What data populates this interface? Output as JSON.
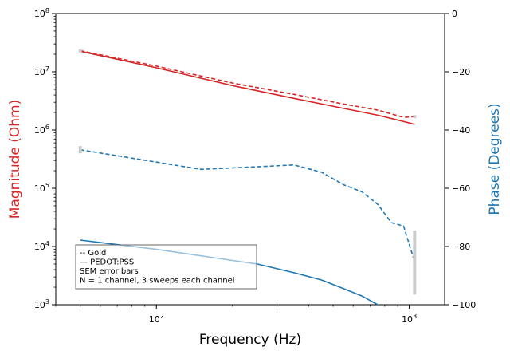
{
  "chart_data": {
    "type": "line",
    "xlabel": "Frequency (Hz)",
    "ylabel_left": "Magnitude (Ohm)",
    "ylabel_right": "Phase (Degrees)",
    "x_scale": "log",
    "xlim": [
      40,
      1380
    ],
    "ylim_left": [
      1000,
      100000000
    ],
    "ylim_right": [
      -100,
      0
    ],
    "x_ticks": [
      {
        "value": 100,
        "base": "10",
        "exp": "2"
      },
      {
        "value": 1000,
        "base": "10",
        "exp": "3"
      }
    ],
    "left_ticks": [
      {
        "value": 1000,
        "base": "10",
        "exp": "3"
      },
      {
        "value": 10000,
        "base": "10",
        "exp": "4"
      },
      {
        "value": 100000,
        "base": "10",
        "exp": "5"
      },
      {
        "value": 1000000,
        "base": "10",
        "exp": "6"
      },
      {
        "value": 10000000,
        "base": "10",
        "exp": "7"
      },
      {
        "value": 100000000,
        "base": "10",
        "exp": "8"
      }
    ],
    "right_ticks": [
      0,
      -20,
      -40,
      -60,
      -80,
      -100
    ],
    "right_tick_labels": [
      "0",
      "−20",
      "−40",
      "−60",
      "−80",
      "−100"
    ],
    "colors": {
      "magnitude": "#d62728",
      "phase": "#1f77b4",
      "errorbar": "#cccccc"
    },
    "series": [
      {
        "name": "Gold magnitude",
        "axis": "left",
        "style": "dashed",
        "color_key": "magnitude",
        "x": [
          50,
          100,
          200,
          350,
          550,
          750,
          950,
          1050
        ],
        "y": [
          23000000,
          12500000,
          6400000,
          4100000,
          2800000,
          2200000,
          1650000,
          1700000
        ]
      },
      {
        "name": "PEDOT:PSS magnitude",
        "axis": "left",
        "style": "solid",
        "color_key": "magnitude",
        "x": [
          50,
          100,
          200,
          350,
          550,
          750,
          950,
          1050
        ],
        "y": [
          22500000,
          11700000,
          5800000,
          3500000,
          2350000,
          1800000,
          1400000,
          1250000
        ]
      },
      {
        "name": "Gold phase",
        "axis": "right",
        "style": "dashed",
        "color_key": "phase",
        "x": [
          50,
          100,
          150,
          200,
          350,
          450,
          550,
          650,
          750,
          850,
          950,
          1050
        ],
        "y": [
          -46.8,
          -51.0,
          -53.5,
          -53.0,
          -52.0,
          -54.5,
          -58.8,
          -61.2,
          -65.5,
          -71.8,
          -73.0,
          -85.2
        ]
      },
      {
        "name": "PEDOT:PSS phase",
        "axis": "right",
        "style": "solid",
        "color_key": "phase",
        "x": [
          50,
          100,
          150,
          200,
          250,
          350,
          450,
          550,
          650,
          750,
          850,
          920
        ],
        "y": [
          -77.8,
          -81.0,
          -83.2,
          -84.8,
          -86.0,
          -89.0,
          -91.5,
          -94.5,
          -97.0,
          -100.0,
          -103.0,
          -105.0
        ]
      }
    ],
    "errorbars": [
      {
        "axis": "left",
        "x": 50,
        "low": 21500000,
        "high": 24500000
      },
      {
        "axis": "left",
        "x": 1050,
        "low": 1600000,
        "high": 1800000
      },
      {
        "axis": "right",
        "x": 50,
        "low": -48.0,
        "high": -45.5
      },
      {
        "axis": "right",
        "x": 1050,
        "low": -96.5,
        "high": -74.5
      }
    ],
    "legend": {
      "position": "lower-left",
      "lines": [
        "-- Gold",
        "— PEDOT:PSS",
        "SEM error bars",
        "N = 1 channel, 3 sweeps each channel"
      ]
    }
  }
}
